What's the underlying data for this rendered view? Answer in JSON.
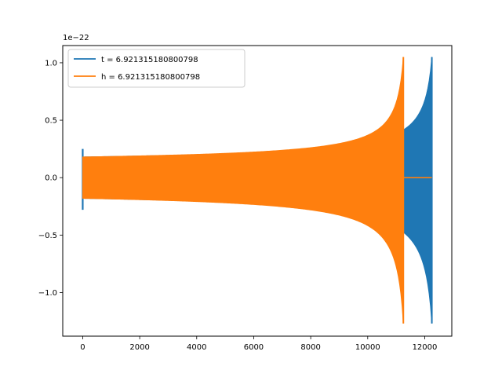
{
  "chart_data": {
    "type": "line",
    "title": "",
    "xlabel": "",
    "ylabel": "",
    "offset_label": "1e−22",
    "xlim": [
      -700,
      12950
    ],
    "ylim": [
      -1.38,
      1.15
    ],
    "x_ticks": [
      0,
      2000,
      4000,
      6000,
      8000,
      10000,
      12000
    ],
    "x_tick_labels": [
      "0",
      "2000",
      "4000",
      "6000",
      "8000",
      "10000",
      "12000"
    ],
    "y_ticks": [
      -1.0,
      -0.5,
      0.0,
      0.5,
      1.0
    ],
    "y_tick_labels": [
      "−1.0",
      "−0.5",
      "0.0",
      "0.5",
      "1.0"
    ],
    "grid": false,
    "legend_position": "top-left",
    "series": [
      {
        "name": "t = 6.921315180800798",
        "color": "#1f77b4",
        "x_start": 0,
        "x_end": 12250,
        "envelope_start": 0.18,
        "envelope_end": 1.05,
        "envelope_min_end": -1.27,
        "spike_start_upper": 0.25,
        "spike_start_lower": -0.28,
        "tail_value": 0.0
      },
      {
        "name": "h = 6.921315180800798",
        "color": "#ff7f0e",
        "x_start": 0,
        "x_end": 11250,
        "envelope_start": 0.18,
        "envelope_end": 1.05,
        "envelope_min_end": -1.27,
        "flat_until": 12250,
        "tail_value": 0.0
      }
    ]
  }
}
